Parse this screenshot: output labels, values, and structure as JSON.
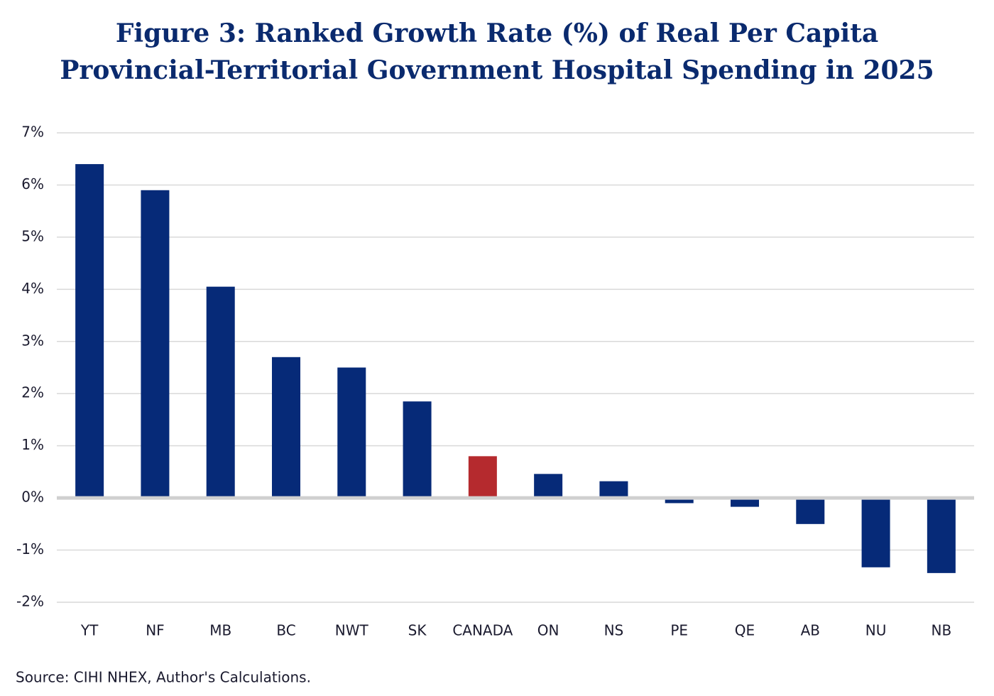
{
  "chart_data": {
    "type": "bar",
    "title": [
      "Figure 3: Ranked Growth Rate (%) of Real Per Capita",
      "Provincial-Territorial Government Hospital Spending in 2025"
    ],
    "categories": [
      "YT",
      "NF",
      "MB",
      "BC",
      "NWT",
      "SK",
      "CANADA",
      "ON",
      "NS",
      "PE",
      "QE",
      "AB",
      "NU",
      "NB"
    ],
    "values": [
      6.4,
      5.9,
      4.05,
      2.7,
      2.5,
      1.85,
      0.8,
      0.46,
      0.32,
      -0.1,
      -0.17,
      -0.5,
      -1.33,
      -1.44
    ],
    "colors": [
      "#062a78",
      "#062a78",
      "#062a78",
      "#062a78",
      "#062a78",
      "#062a78",
      "#b52a2e",
      "#062a78",
      "#062a78",
      "#062a78",
      "#062a78",
      "#062a78",
      "#062a78",
      "#062a78"
    ],
    "ylim": [
      -2,
      7
    ],
    "yticks": [
      {
        "value": -2,
        "label": "-2%"
      },
      {
        "value": -1,
        "label": "-1%"
      },
      {
        "value": 0,
        "label": "0%"
      },
      {
        "value": 1,
        "label": "1%"
      },
      {
        "value": 2,
        "label": "2%"
      },
      {
        "value": 3,
        "label": "3%"
      },
      {
        "value": 4,
        "label": "4%"
      },
      {
        "value": 5,
        "label": "5%"
      },
      {
        "value": 6,
        "label": "6%"
      },
      {
        "value": 7,
        "label": "7%"
      }
    ],
    "grid": true,
    "source": "Source: CIHI NHEX, Author's Calculations."
  }
}
